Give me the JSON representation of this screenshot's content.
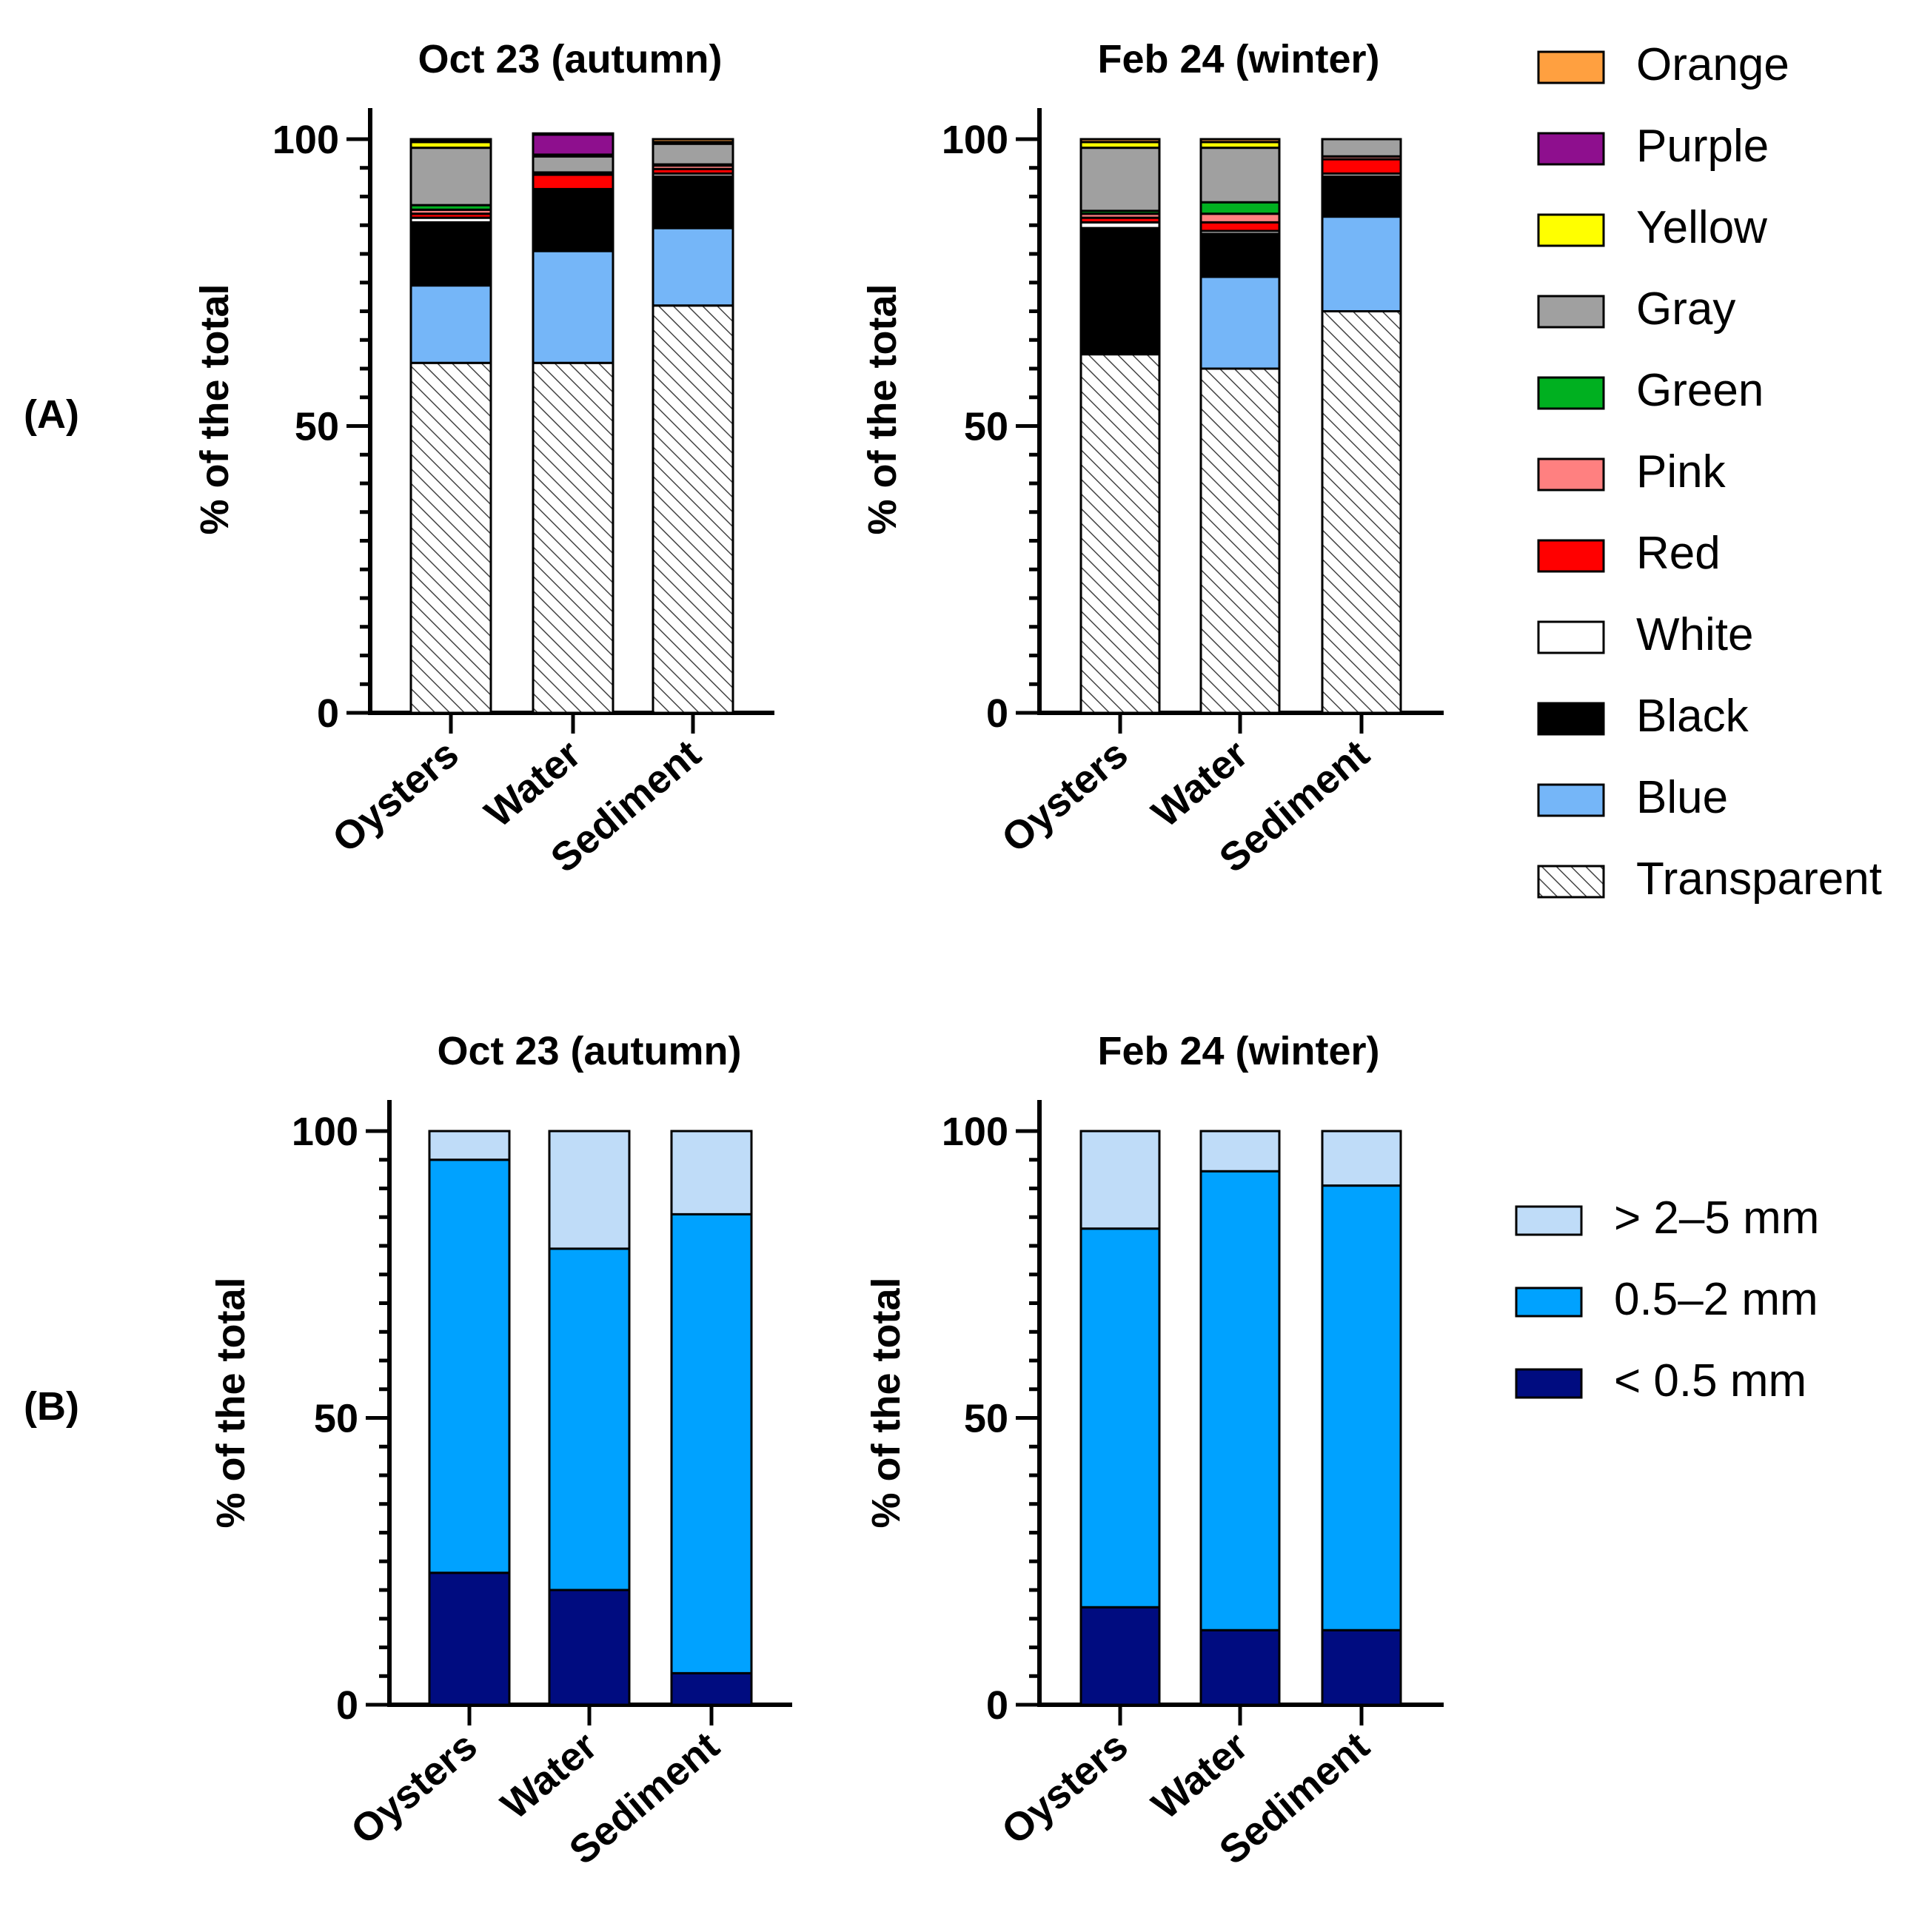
{
  "figure": {
    "panel_labels": [
      "(A)",
      "(B)"
    ]
  },
  "chart_data": [
    {
      "type": "bar",
      "stacked": true,
      "panel": "(A)",
      "title": "Oct 23 (autumn)",
      "ylabel": "% of the total",
      "xlabel": "",
      "ylim": [
        0,
        100
      ],
      "yticks": [
        0,
        50,
        100
      ],
      "categories": [
        "Oysters",
        "Water",
        "Sediment"
      ],
      "series": [
        {
          "name": "Transparent",
          "values": [
            61,
            61,
            71
          ]
        },
        {
          "name": "Blue",
          "values": [
            13.5,
            19.5,
            13.5
          ]
        },
        {
          "name": "Black",
          "values": [
            11,
            10.5,
            9
          ]
        },
        {
          "name": "White",
          "values": [
            0.8,
            0.3,
            0.5
          ]
        },
        {
          "name": "Red",
          "values": [
            0.7,
            2.5,
            0.8
          ]
        },
        {
          "name": "Pink",
          "values": [
            0.7,
            0.2,
            0.6
          ]
        },
        {
          "name": "Green",
          "values": [
            0.8,
            0.2,
            0.2
          ]
        },
        {
          "name": "Gray",
          "values": [
            10,
            2.8,
            3.6
          ]
        },
        {
          "name": "Yellow",
          "values": [
            1,
            0.3,
            0.3
          ]
        },
        {
          "name": "Purple",
          "values": [
            0.2,
            3.5,
            0
          ]
        },
        {
          "name": "Orange",
          "values": [
            0.3,
            0.2,
            0.5
          ]
        }
      ]
    },
    {
      "type": "bar",
      "stacked": true,
      "panel": "(A)",
      "title": "Feb 24 (winter)",
      "ylabel": "% of the total",
      "xlabel": "",
      "ylim": [
        0,
        100
      ],
      "yticks": [
        0,
        50,
        100
      ],
      "categories": [
        "Oysters",
        "Water",
        "Sediment"
      ],
      "series": [
        {
          "name": "Transparent",
          "values": [
            62.5,
            60,
            70
          ]
        },
        {
          "name": "Blue",
          "values": [
            0,
            16,
            16.5
          ]
        },
        {
          "name": "Black",
          "values": [
            22,
            7.5,
            7
          ]
        },
        {
          "name": "White",
          "values": [
            1,
            0.5,
            0.5
          ]
        },
        {
          "name": "Red",
          "values": [
            0.8,
            1.5,
            2.5
          ]
        },
        {
          "name": "Pink",
          "values": [
            0.7,
            1.5,
            0.5
          ]
        },
        {
          "name": "Green",
          "values": [
            0.5,
            2,
            0
          ]
        },
        {
          "name": "Gray",
          "values": [
            11,
            9.5,
            3
          ]
        },
        {
          "name": "Yellow",
          "values": [
            1,
            1,
            0
          ]
        },
        {
          "name": "Purple",
          "values": [
            0,
            0,
            0
          ]
        },
        {
          "name": "Orange",
          "values": [
            0.5,
            0.5,
            0
          ]
        }
      ]
    },
    {
      "type": "bar",
      "stacked": true,
      "panel": "(B)",
      "title": "Oct 23 (autumn)",
      "ylabel": "% of the total",
      "xlabel": "",
      "ylim": [
        0,
        100
      ],
      "yticks": [
        0,
        50,
        100
      ],
      "categories": [
        "Oysters",
        "Water",
        "Sediment"
      ],
      "series": [
        {
          "name": "< 0.5 mm",
          "values": [
            23,
            20,
            5.5
          ]
        },
        {
          "name": "0.5–2 mm",
          "values": [
            72,
            59.5,
            80
          ]
        },
        {
          "name": "> 2–5 mm",
          "values": [
            5,
            20.5,
            14.5
          ]
        }
      ]
    },
    {
      "type": "bar",
      "stacked": true,
      "panel": "(B)",
      "title": "Feb 24 (winter)",
      "ylabel": "% of the total",
      "xlabel": "",
      "ylim": [
        0,
        100
      ],
      "yticks": [
        0,
        50,
        100
      ],
      "categories": [
        "Oysters",
        "Water",
        "Sediment"
      ],
      "series": [
        {
          "name": "< 0.5 mm",
          "values": [
            17,
            13,
            13
          ]
        },
        {
          "name": "0.5–2 mm",
          "values": [
            66,
            80,
            77.5
          ]
        },
        {
          "name": "> 2–5 mm",
          "values": [
            17,
            7,
            9.5
          ]
        }
      ]
    }
  ],
  "legends": {
    "colors": {
      "items": [
        "Orange",
        "Purple",
        "Yellow",
        "Gray",
        "Green",
        "Pink",
        "Red",
        "White",
        "Black",
        "Blue",
        "Transparent"
      ]
    },
    "sizes": {
      "items": [
        "> 2–5 mm",
        "0.5–2 mm",
        "< 0.5 mm"
      ]
    }
  },
  "series_colors": {
    "Transparent": "hatch",
    "Blue": "#75b6f8",
    "Black": "#000000",
    "White": "#ffffff",
    "Red": "#ff0000",
    "Pink": "#ff8080",
    "Green": "#00b020",
    "Gray": "#a0a0a0",
    "Yellow": "#ffff00",
    "Purple": "#8e0f8e",
    "Orange": "#ffa040",
    "< 0.5 mm": "#000c80",
    "0.5–2 mm": "#00a2ff",
    "> 2–5 mm": "#bfdcf8"
  }
}
